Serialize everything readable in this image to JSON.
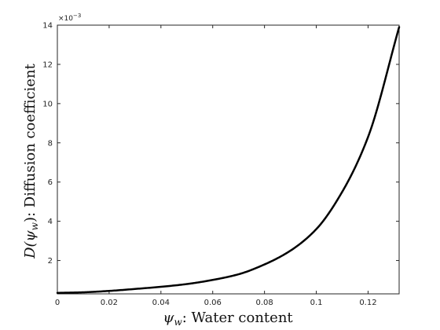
{
  "chart_data": {
    "type": "line",
    "title": "",
    "xlabel": "ψ_w: Water content",
    "ylabel": "D(ψ_w): Diffusion coefficient",
    "xlabel_parts": {
      "sym": "ψ",
      "sub": "w",
      "rest": ": Water content"
    },
    "ylabel_parts": {
      "pre": "D(",
      "sym": "ψ",
      "sub": "w",
      "rest": "): Diffusion coefficient"
    },
    "y_exponent_label": "×10⁻³",
    "y_exponent_parts": {
      "base": "×10",
      "exp": "−3"
    },
    "xlim": [
      0,
      0.132
    ],
    "ylim": [
      0.0003,
      0.014
    ],
    "x_ticks": [
      0,
      0.02,
      0.04,
      0.06,
      0.08,
      0.1,
      0.12
    ],
    "x_tick_labels": [
      "0",
      "0.02",
      "0.04",
      "0.06",
      "0.08",
      "0.1",
      "0.12"
    ],
    "y_ticks": [
      0.002,
      0.004,
      0.006,
      0.008,
      0.01,
      0.012,
      0.014
    ],
    "y_tick_labels": [
      "2",
      "4",
      "6",
      "8",
      "10",
      "12",
      "14"
    ],
    "grid": false,
    "series": [
      {
        "color": "#000000",
        "x": [
          0,
          0.01,
          0.02,
          0.03,
          0.04,
          0.05,
          0.06,
          0.07,
          0.08,
          0.09,
          0.1,
          0.11,
          0.12,
          0.132
        ],
        "y": [
          0.00035,
          0.00038,
          0.00045,
          0.00055,
          0.00066,
          0.0008,
          0.00101,
          0.0013,
          0.0018,
          0.0025,
          0.0036,
          0.0055,
          0.0083,
          0.0139
        ]
      }
    ]
  }
}
